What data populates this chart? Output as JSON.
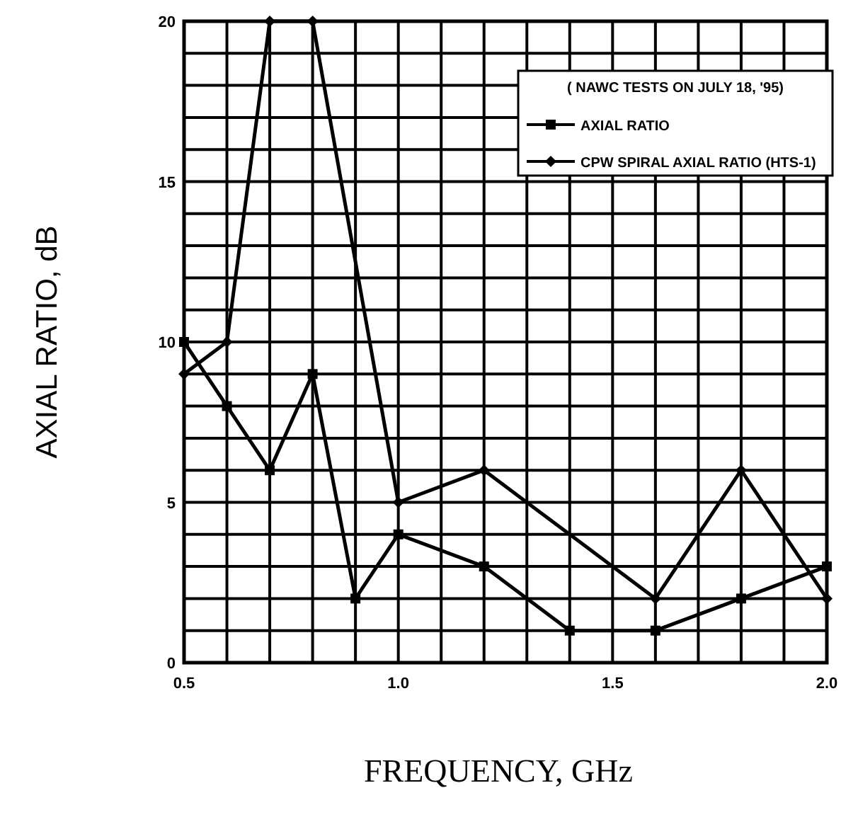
{
  "chart_data": {
    "type": "line",
    "xlabel": "FREQUENCY, GHz",
    "ylabel": "AXIAL RATIO, dB",
    "annotations": [
      "( NAWC TESTS ON JULY 18, '95)"
    ],
    "xlim": [
      0.5,
      2.0
    ],
    "xticks": [
      {
        "value": 0.5,
        "label": "0.5"
      },
      {
        "value": 0.6,
        "label": null
      },
      {
        "value": 0.7,
        "label": null
      },
      {
        "value": 0.8,
        "label": null
      },
      {
        "value": 0.9,
        "label": null
      },
      {
        "value": 1.0,
        "label": "1.0"
      },
      {
        "value": 1.1,
        "label": null
      },
      {
        "value": 1.2,
        "label": null
      },
      {
        "value": 1.3,
        "label": null
      },
      {
        "value": 1.4,
        "label": null
      },
      {
        "value": 1.5,
        "label": "1.5"
      },
      {
        "value": 1.6,
        "label": null
      },
      {
        "value": 1.7,
        "label": null
      },
      {
        "value": 1.8,
        "label": null
      },
      {
        "value": 1.9,
        "label": null
      },
      {
        "value": 2.0,
        "label": "2.0"
      }
    ],
    "ylim": [
      0,
      20
    ],
    "yticks": [
      0,
      {
        "value": 1,
        "label": null
      },
      {
        "value": 2,
        "label": null
      },
      {
        "value": 3,
        "label": null
      },
      {
        "value": 4,
        "label": null
      },
      5,
      {
        "value": 6,
        "label": null
      },
      {
        "value": 7,
        "label": null
      },
      {
        "value": 8,
        "label": null
      },
      {
        "value": 9,
        "label": null
      },
      10,
      {
        "value": 11,
        "label": null
      },
      {
        "value": 12,
        "label": null
      },
      {
        "value": 13,
        "label": null
      },
      {
        "value": 14,
        "label": null
      },
      15,
      {
        "value": 16,
        "label": null
      },
      {
        "value": 17,
        "label": null
      },
      {
        "value": 18,
        "label": null
      },
      {
        "value": 19,
        "label": null
      },
      20
    ],
    "grid": true,
    "legend": "top right",
    "line_style": "solid",
    "series": [
      {
        "name": "AXIAL RATIO",
        "color": "#000000",
        "marker": "square",
        "x": [
          0.5,
          0.6,
          0.7,
          0.8,
          0.9,
          1.0,
          1.2,
          1.4,
          1.6,
          1.8,
          2.0
        ],
        "values": [
          10,
          8,
          6,
          9,
          2,
          4,
          3,
          1,
          1,
          2,
          3
        ]
      },
      {
        "name": "CPW SPIRAL AXIAL RATIO (HTS-1)",
        "color": "#000000",
        "marker": "diamond",
        "x": [
          0.5,
          0.6,
          0.7,
          0.8,
          1.0,
          1.2,
          1.6,
          1.8,
          2.0
        ],
        "values": [
          9,
          10,
          20,
          20,
          5,
          6,
          2,
          6,
          2
        ]
      }
    ]
  }
}
